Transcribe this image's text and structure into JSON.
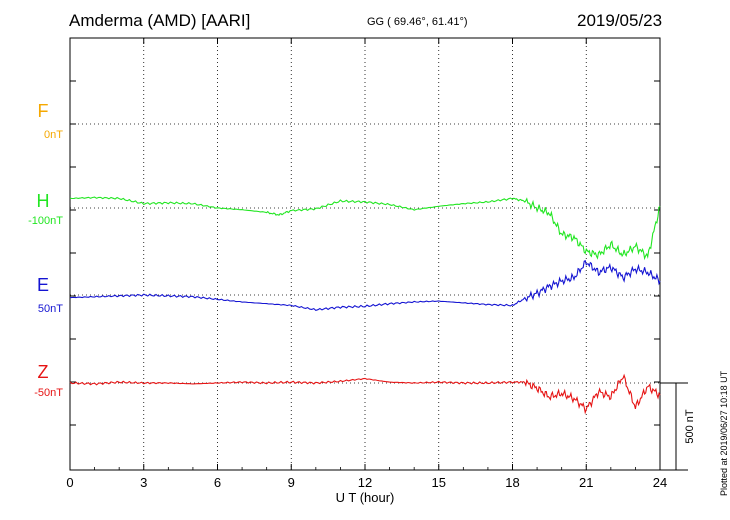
{
  "header": {
    "station": "Amderma (AMD)  [AARI]",
    "coords": "GG ( 69.46°,  61.41°)",
    "date": "2019/05/23"
  },
  "credit": "Plotted at 2019/06/27 10:18 UT",
  "chart_data": {
    "type": "line",
    "title": "Amderma (AMD)  [AARI]",
    "xlabel": "U T (hour)",
    "xlim": [
      0,
      24
    ],
    "xticks": [
      "0",
      "3",
      "6",
      "9",
      "12",
      "15",
      "18",
      "21",
      "24"
    ],
    "grid": true,
    "scale_bar": {
      "label": "500 nT",
      "value_nT": 500
    },
    "series": [
      {
        "name": "F",
        "offset_label": "0nT",
        "color": "#f5a800",
        "x": [],
        "y": []
      },
      {
        "name": "H",
        "offset_label": "-100nT",
        "color": "#22e622",
        "x": [
          0,
          1,
          2,
          3,
          4,
          5,
          6,
          7,
          8,
          8.5,
          9,
          10,
          11,
          12,
          13,
          14,
          15,
          16,
          17,
          18,
          18.5,
          19,
          19.5,
          20,
          20.5,
          21,
          21.5,
          22,
          22.5,
          23,
          23.5,
          24
        ],
        "y": [
          55,
          60,
          55,
          25,
          30,
          25,
          0,
          -10,
          -25,
          -40,
          -15,
          -5,
          40,
          35,
          20,
          -10,
          10,
          25,
          35,
          55,
          40,
          0,
          -30,
          -150,
          -170,
          -250,
          -270,
          -210,
          -270,
          -220,
          -280,
          10
        ]
      },
      {
        "name": "E",
        "offset_label": "50nT",
        "color": "#1414d2",
        "x": [
          0,
          1,
          2,
          3,
          4,
          5,
          6,
          7,
          8,
          9,
          10,
          11,
          12,
          13,
          14,
          15,
          16,
          17,
          18,
          18.5,
          19,
          19.5,
          20,
          20.5,
          21,
          21.5,
          22,
          22.5,
          23,
          23.5,
          24
        ],
        "y": [
          -15,
          -10,
          -5,
          0,
          -5,
          -10,
          -25,
          -40,
          -50,
          -60,
          -85,
          -70,
          -65,
          -50,
          -40,
          -35,
          -45,
          -55,
          -60,
          -20,
          10,
          50,
          80,
          100,
          190,
          130,
          160,
          100,
          150,
          130,
          80
        ]
      },
      {
        "name": "Z",
        "offset_label": "-50nT",
        "color": "#e61414",
        "x": [
          0,
          1,
          2,
          3,
          4,
          5,
          6,
          7,
          8,
          9,
          10,
          11,
          12,
          13,
          14,
          15,
          16,
          17,
          18,
          18.5,
          19,
          19.5,
          20,
          20.5,
          21,
          21.5,
          22,
          22.5,
          23,
          23.5,
          24
        ],
        "y": [
          0,
          -5,
          5,
          0,
          0,
          -5,
          0,
          5,
          0,
          5,
          0,
          10,
          25,
          5,
          0,
          5,
          0,
          0,
          5,
          5,
          -30,
          -80,
          -60,
          -90,
          -150,
          -50,
          -80,
          40,
          -140,
          -20,
          -70
        ]
      }
    ]
  }
}
